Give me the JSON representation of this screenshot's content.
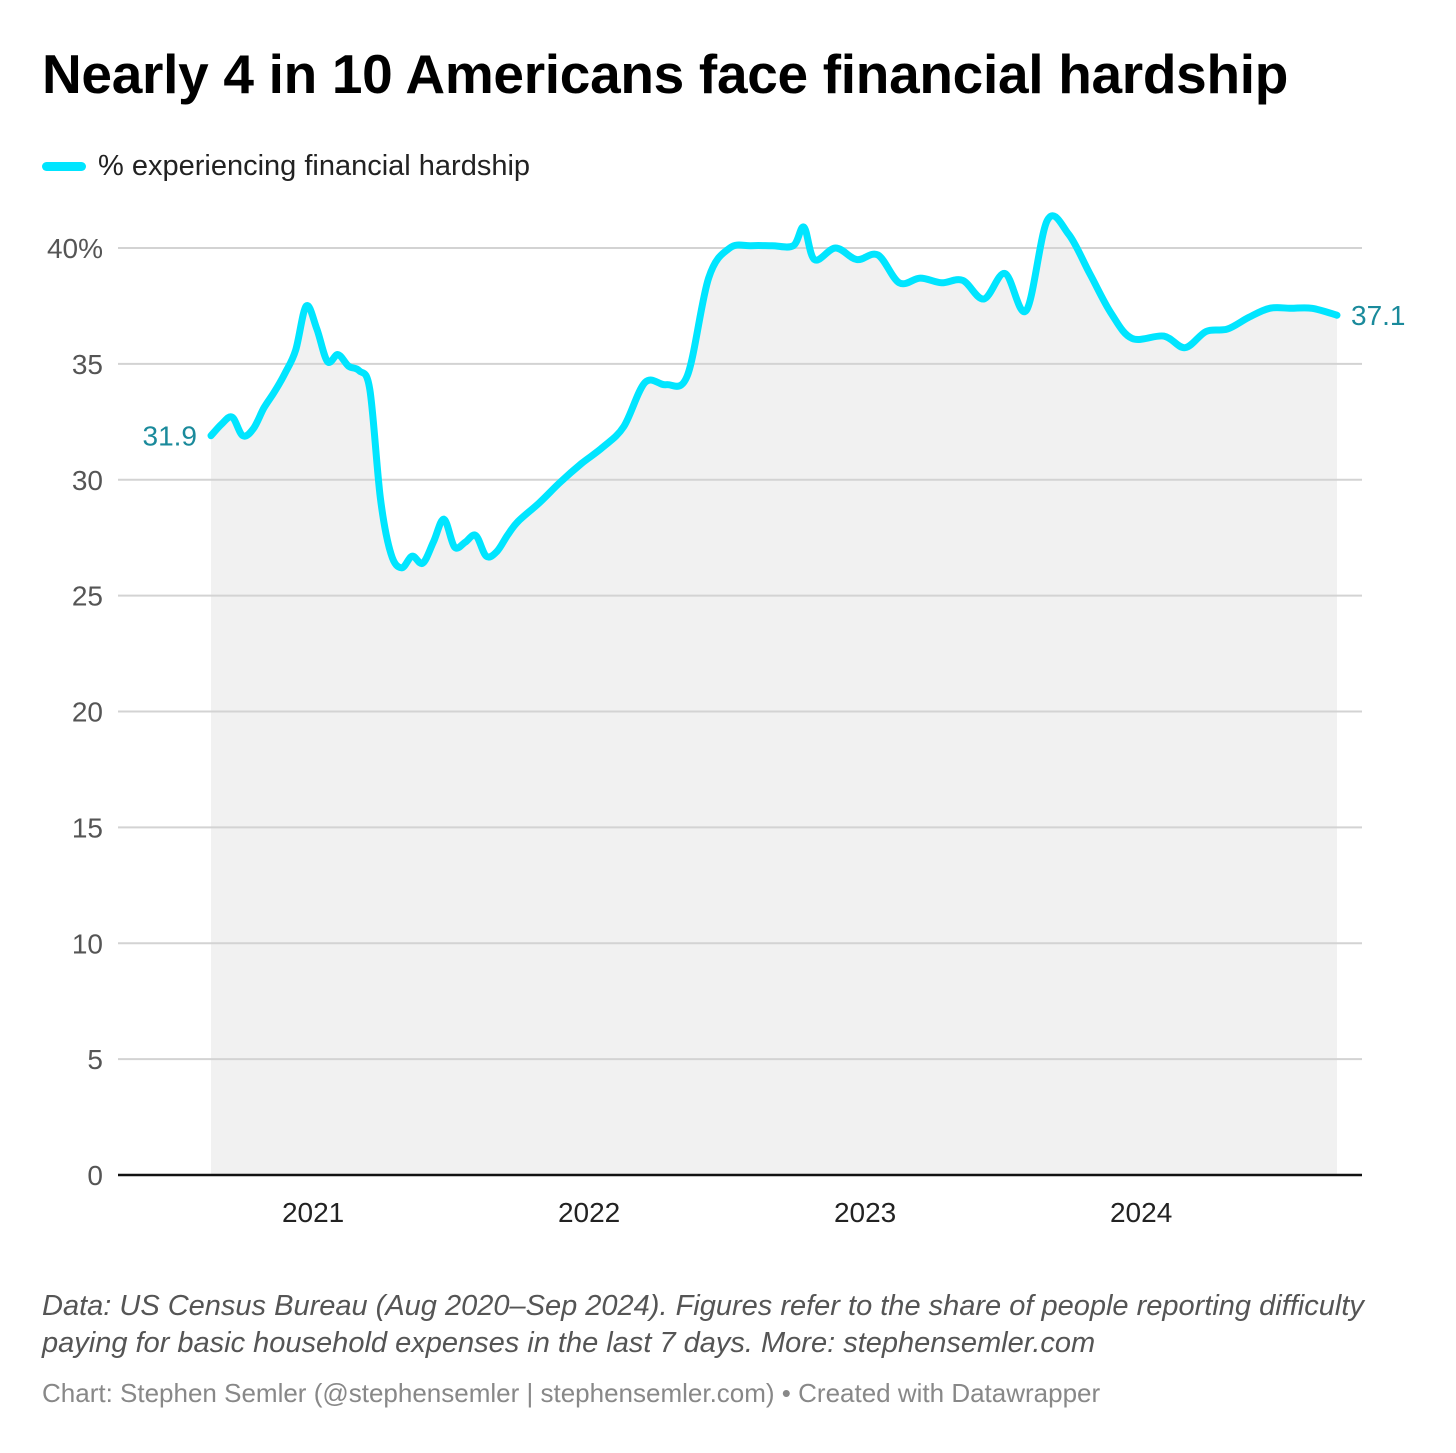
{
  "title": "Nearly 4 in 10 Americans face financial hardship",
  "legend": {
    "label": "% experiencing financial hardship"
  },
  "colors": {
    "line": "#00e5ff",
    "area": "#f1f1f1",
    "grid": "#d3d3d3",
    "axis": "#111111",
    "tick_text": "#555555",
    "value_label": "#1a8a9b"
  },
  "footer": {
    "note": "Data: US Census Bureau (Aug 2020–Sep 2024). Figures refer to the share of people reporting difficulty paying for basic household expenses in the last 7 days. More: stephensemler.com",
    "credit": "Chart: Stephen Semler (@stephensemler | stephensemler.com) • Created with Datawrapper"
  },
  "chart_data": {
    "type": "area",
    "series": [
      {
        "name": "% experiencing financial hardship",
        "points": [
          [
            "2020-08-19",
            31.9
          ],
          [
            "2020-09-02",
            32.4
          ],
          [
            "2020-09-16",
            32.7
          ],
          [
            "2020-09-30",
            31.9
          ],
          [
            "2020-10-14",
            32.2
          ],
          [
            "2020-10-28",
            33.1
          ],
          [
            "2020-11-11",
            33.8
          ],
          [
            "2020-11-25",
            34.6
          ],
          [
            "2020-12-09",
            35.6
          ],
          [
            "2020-12-23",
            37.5
          ],
          [
            "2021-01-06",
            36.5
          ],
          [
            "2021-01-20",
            35.1
          ],
          [
            "2021-02-03",
            35.4
          ],
          [
            "2021-02-17",
            34.9
          ],
          [
            "2021-03-03",
            34.7
          ],
          [
            "2021-03-17",
            33.9
          ],
          [
            "2021-03-31",
            29.2
          ],
          [
            "2021-04-14",
            26.8
          ],
          [
            "2021-04-28",
            26.2
          ],
          [
            "2021-05-12",
            26.7
          ],
          [
            "2021-05-26",
            26.4
          ],
          [
            "2021-06-09",
            27.3
          ],
          [
            "2021-06-23",
            28.3
          ],
          [
            "2021-07-07",
            27.1
          ],
          [
            "2021-07-21",
            27.3
          ],
          [
            "2021-08-04",
            27.6
          ],
          [
            "2021-08-18",
            26.7
          ],
          [
            "2021-09-01",
            26.9
          ],
          [
            "2021-09-15",
            27.6
          ],
          [
            "2021-09-29",
            28.2
          ],
          [
            "2021-10-27",
            29.0
          ],
          [
            "2021-11-24",
            29.9
          ],
          [
            "2021-12-22",
            30.7
          ],
          [
            "2022-01-19",
            31.4
          ],
          [
            "2022-02-16",
            32.3
          ],
          [
            "2022-03-16",
            34.2
          ],
          [
            "2022-04-13",
            34.1
          ],
          [
            "2022-05-11",
            34.5
          ],
          [
            "2022-06-08",
            38.7
          ],
          [
            "2022-07-06",
            40.0
          ],
          [
            "2022-08-03",
            40.1
          ],
          [
            "2022-08-31",
            40.1
          ],
          [
            "2022-09-28",
            40.1
          ],
          [
            "2022-10-12",
            40.9
          ],
          [
            "2022-10-26",
            39.5
          ],
          [
            "2022-11-23",
            40.0
          ],
          [
            "2022-12-21",
            39.5
          ],
          [
            "2023-01-18",
            39.7
          ],
          [
            "2023-02-15",
            38.5
          ],
          [
            "2023-03-15",
            38.7
          ],
          [
            "2023-04-12",
            38.5
          ],
          [
            "2023-05-10",
            38.6
          ],
          [
            "2023-06-07",
            37.8
          ],
          [
            "2023-07-05",
            38.9
          ],
          [
            "2023-08-02",
            37.3
          ],
          [
            "2023-08-30",
            41.2
          ],
          [
            "2023-09-27",
            40.6
          ],
          [
            "2023-10-25",
            38.9
          ],
          [
            "2023-11-22",
            37.2
          ],
          [
            "2023-12-20",
            36.1
          ],
          [
            "2024-01-31",
            36.2
          ],
          [
            "2024-02-28",
            35.7
          ],
          [
            "2024-03-27",
            36.4
          ],
          [
            "2024-04-24",
            36.5
          ],
          [
            "2024-05-22",
            37.0
          ],
          [
            "2024-06-19",
            37.4
          ],
          [
            "2024-07-17",
            37.4
          ],
          [
            "2024-08-14",
            37.4
          ],
          [
            "2024-09-16",
            37.1
          ]
        ]
      }
    ],
    "x_range": [
      "2020-08-19",
      "2024-09-16"
    ],
    "x_ticks": [
      {
        "date": "2021-01-01",
        "label": "2021"
      },
      {
        "date": "2022-01-01",
        "label": "2022"
      },
      {
        "date": "2023-01-01",
        "label": "2023"
      },
      {
        "date": "2024-01-01",
        "label": "2024"
      }
    ],
    "y_range": [
      0,
      40
    ],
    "y_ticks": [
      {
        "value": 0,
        "label": "0"
      },
      {
        "value": 5,
        "label": "5"
      },
      {
        "value": 10,
        "label": "10"
      },
      {
        "value": 15,
        "label": "15"
      },
      {
        "value": 20,
        "label": "20"
      },
      {
        "value": 25,
        "label": "25"
      },
      {
        "value": 30,
        "label": "30"
      },
      {
        "value": 35,
        "label": "35"
      },
      {
        "value": 40,
        "label": "40%"
      }
    ],
    "value_labels": [
      {
        "text": "31.9",
        "date": "2020-08-19",
        "value": 31.9,
        "side": "left"
      },
      {
        "text": "37.1",
        "date": "2024-09-16",
        "value": 37.1,
        "side": "right"
      }
    ],
    "grid": true,
    "legend_position": "top-left"
  }
}
